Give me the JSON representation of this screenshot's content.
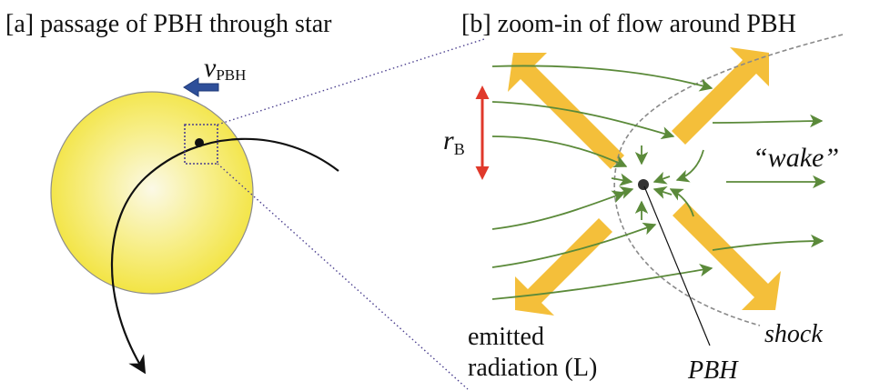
{
  "panel_a": {
    "title": "[a] passage of PBH through star",
    "velocity_symbol": "v",
    "velocity_subscript": "PBH"
  },
  "panel_b": {
    "title": "[b] zoom-in of flow around PBH",
    "radius_symbol": "r",
    "radius_subscript": "B",
    "wake_label": "“wake”",
    "shock_label": "shock",
    "pbh_label": "PBH",
    "radiation_label_line1": "emitted",
    "radiation_label_line2": "radiation (L)"
  },
  "colors": {
    "star_core": "#fbf9e6",
    "star_edge": "#f2e33c",
    "velocity_arrow": "#2e4f9a",
    "radiation": "#f4bf3a",
    "flow": "#5b8a3a",
    "radius_marker": "#e0392b",
    "zoom_lines": "#4b3f8f",
    "shock": "#8a8a8a"
  }
}
